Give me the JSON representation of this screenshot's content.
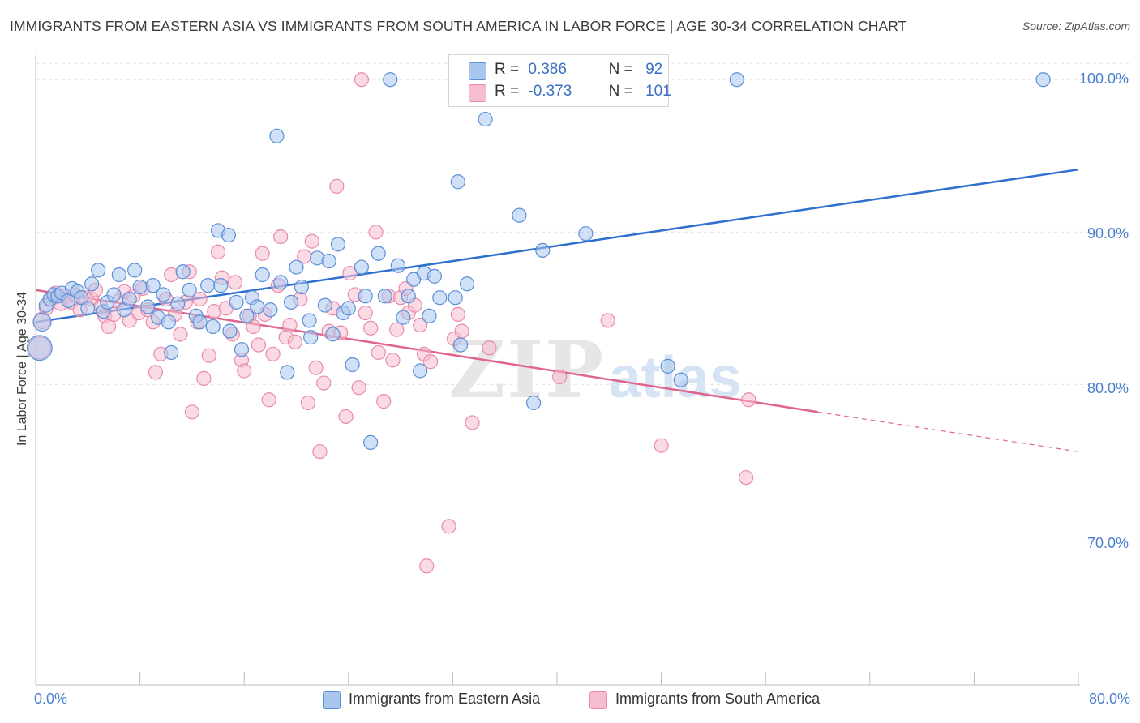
{
  "header": {
    "title": "IMMIGRANTS FROM EASTERN ASIA VS IMMIGRANTS FROM SOUTH AMERICA IN LABOR FORCE | AGE 30-34 CORRELATION CHART",
    "source": "Source: ZipAtlas.com"
  },
  "watermark": {
    "zip": "ZIP",
    "atlas": "atlas"
  },
  "legend": {
    "series1": {
      "r_label": "R =",
      "r_value": "0.386",
      "n_label": "N =",
      "n_value": "92"
    },
    "series2": {
      "r_label": "R =",
      "r_value": "-0.373",
      "n_label": "N =",
      "n_value": "101"
    }
  },
  "colors": {
    "blue_fill": "#a9c6ef",
    "blue_stroke": "#5b8fd6",
    "blue_line": "#2f6fcf",
    "pink_fill": "#f6bdd0",
    "pink_stroke": "#e98aaa",
    "pink_line": "#e0648e",
    "grid": "#e4e4e4",
    "axis_text": "#4a7fcf"
  },
  "chart_data": {
    "type": "scatter",
    "title": "IMMIGRANTS FROM EASTERN ASIA VS IMMIGRANTS FROM SOUTH AMERICA IN LABOR FORCE | AGE 30-34 CORRELATION CHART",
    "xlabel": "",
    "ylabel": "In Labor Force | Age 30-34",
    "xlim": [
      0,
      80
    ],
    "ylim": [
      60.3,
      101.5
    ],
    "x_tick_labels": [
      "0.0%",
      "80.0%"
    ],
    "y_ticks": [
      70,
      80,
      90,
      100
    ],
    "y_tick_labels": [
      "70.0%",
      "80.0%",
      "90.0%",
      "100.0%"
    ],
    "grid": true,
    "legend_position": "bottom",
    "series": [
      {
        "name": "Immigrants from Eastern Asia",
        "color": "#a9c6ef",
        "trend": {
          "x": [
            0,
            80
          ],
          "y": [
            84.1,
            94.1
          ],
          "style": "solid"
        },
        "points": [
          [
            0.3,
            82.4,
            1.8
          ],
          [
            0.5,
            84.1,
            1.3
          ],
          [
            0.8,
            85.2,
            1
          ],
          [
            1.1,
            85.6,
            1
          ],
          [
            1.4,
            85.9,
            1
          ],
          [
            1.7,
            85.8,
            1
          ],
          [
            2.0,
            86.0,
            1
          ],
          [
            2.5,
            85.5,
            1
          ],
          [
            2.8,
            86.3,
            1
          ],
          [
            3.2,
            86.1,
            1
          ],
          [
            3.5,
            85.7,
            1
          ],
          [
            4.0,
            85.0,
            1
          ],
          [
            4.3,
            86.6,
            1
          ],
          [
            4.8,
            87.5,
            1
          ],
          [
            5.2,
            84.8,
            1
          ],
          [
            5.5,
            85.4,
            1
          ],
          [
            6.0,
            85.9,
            1
          ],
          [
            6.4,
            87.2,
            1
          ],
          [
            6.8,
            84.9,
            1
          ],
          [
            7.2,
            85.6,
            1
          ],
          [
            7.6,
            87.5,
            1
          ],
          [
            8.0,
            86.4,
            1
          ],
          [
            8.6,
            85.1,
            1
          ],
          [
            9.0,
            86.5,
            1
          ],
          [
            9.4,
            84.4,
            1
          ],
          [
            9.8,
            85.9,
            1
          ],
          [
            10.2,
            84.1,
            1
          ],
          [
            10.4,
            82.1,
            1
          ],
          [
            10.9,
            85.3,
            1
          ],
          [
            11.3,
            87.4,
            1
          ],
          [
            11.8,
            86.2,
            1
          ],
          [
            12.3,
            84.5,
            1
          ],
          [
            12.6,
            84.1,
            1
          ],
          [
            13.2,
            86.5,
            1
          ],
          [
            13.6,
            83.8,
            1
          ],
          [
            14.2,
            86.5,
            1
          ],
          [
            14.0,
            90.1,
            1
          ],
          [
            14.8,
            89.8,
            1
          ],
          [
            14.9,
            83.5,
            1
          ],
          [
            15.4,
            85.4,
            1
          ],
          [
            15.8,
            82.3,
            1
          ],
          [
            16.2,
            84.5,
            1
          ],
          [
            16.6,
            85.7,
            1
          ],
          [
            17.0,
            85.1,
            1
          ],
          [
            17.4,
            87.2,
            1
          ],
          [
            18.0,
            84.9,
            1
          ],
          [
            18.5,
            96.3,
            1
          ],
          [
            18.8,
            86.7,
            1
          ],
          [
            19.3,
            80.8,
            1
          ],
          [
            19.6,
            85.4,
            1
          ],
          [
            20.0,
            87.7,
            1
          ],
          [
            20.4,
            86.4,
            1
          ],
          [
            21.0,
            84.2,
            1
          ],
          [
            21.1,
            83.1,
            1
          ],
          [
            21.6,
            88.3,
            1
          ],
          [
            22.2,
            85.2,
            1
          ],
          [
            22.5,
            88.1,
            1
          ],
          [
            22.8,
            83.3,
            1
          ],
          [
            23.2,
            89.2,
            1
          ],
          [
            23.6,
            84.7,
            1
          ],
          [
            24.0,
            85.0,
            1
          ],
          [
            24.3,
            81.3,
            1
          ],
          [
            25.0,
            87.7,
            1
          ],
          [
            25.3,
            85.8,
            1
          ],
          [
            25.7,
            76.2,
            1
          ],
          [
            26.3,
            88.6,
            1
          ],
          [
            26.8,
            85.8,
            1
          ],
          [
            27.2,
            100.0,
            1
          ],
          [
            27.8,
            87.8,
            1
          ],
          [
            28.2,
            84.4,
            1
          ],
          [
            28.6,
            85.8,
            1
          ],
          [
            29.0,
            86.9,
            1
          ],
          [
            29.5,
            80.9,
            1
          ],
          [
            29.8,
            87.3,
            1
          ],
          [
            30.2,
            84.5,
            1
          ],
          [
            30.6,
            87.1,
            1
          ],
          [
            31.0,
            85.7,
            1
          ],
          [
            32.2,
            85.7,
            1
          ],
          [
            32.4,
            93.3,
            1
          ],
          [
            32.6,
            82.6,
            1
          ],
          [
            33.1,
            86.6,
            1
          ],
          [
            34.5,
            97.4,
            1
          ],
          [
            37.1,
            91.1,
            1
          ],
          [
            38.2,
            78.8,
            1
          ],
          [
            38.5,
            100.0,
            1
          ],
          [
            38.9,
            88.8,
            1
          ],
          [
            42.2,
            89.9,
            1
          ],
          [
            48.5,
            81.2,
            1
          ],
          [
            49.5,
            80.3,
            1
          ],
          [
            53.8,
            100.0,
            1
          ],
          [
            77.3,
            100.0,
            1
          ]
        ]
      },
      {
        "name": "Immigrants from South America",
        "color": "#f6bdd0",
        "trend": {
          "x": [
            0,
            60
          ],
          "y": [
            86.2,
            78.2
          ],
          "style": "solid",
          "extension_x": [
            60,
            80
          ],
          "extension_y": [
            78.2,
            75.6
          ]
        },
        "points": [
          [
            0.3,
            82.4,
            1.6
          ],
          [
            0.5,
            84.2,
            1.2
          ],
          [
            0.8,
            85.0,
            1
          ],
          [
            1.2,
            85.6,
            1
          ],
          [
            1.5,
            86.0,
            1
          ],
          [
            1.9,
            85.3,
            1
          ],
          [
            2.3,
            85.8,
            1
          ],
          [
            2.7,
            85.4,
            1
          ],
          [
            3.0,
            85.9,
            1
          ],
          [
            3.4,
            84.9,
            1
          ],
          [
            3.8,
            85.7,
            1
          ],
          [
            4.3,
            85.6,
            1
          ],
          [
            4.6,
            86.2,
            1
          ],
          [
            5.0,
            85.1,
            1
          ],
          [
            5.3,
            84.5,
            1
          ],
          [
            5.6,
            83.8,
            1
          ],
          [
            6.0,
            84.6,
            1
          ],
          [
            6.4,
            85.5,
            1
          ],
          [
            6.8,
            86.1,
            1
          ],
          [
            7.2,
            84.2,
            1
          ],
          [
            7.5,
            85.8,
            1
          ],
          [
            7.9,
            84.7,
            1
          ],
          [
            8.2,
            86.3,
            1
          ],
          [
            8.6,
            84.9,
            1
          ],
          [
            9.0,
            84.1,
            1
          ],
          [
            9.2,
            80.8,
            1
          ],
          [
            9.6,
            82.0,
            1
          ],
          [
            10.0,
            85.6,
            1
          ],
          [
            10.4,
            87.2,
            1
          ],
          [
            10.7,
            84.6,
            1
          ],
          [
            11.1,
            83.3,
            1
          ],
          [
            11.5,
            85.4,
            1
          ],
          [
            11.8,
            87.4,
            1
          ],
          [
            12.0,
            78.2,
            1
          ],
          [
            12.4,
            84.1,
            1
          ],
          [
            12.6,
            85.6,
            1
          ],
          [
            12.9,
            80.4,
            1
          ],
          [
            13.3,
            81.9,
            1
          ],
          [
            13.7,
            84.8,
            1
          ],
          [
            14.0,
            88.7,
            1
          ],
          [
            14.3,
            87.0,
            1
          ],
          [
            14.6,
            85.0,
            1
          ],
          [
            15.1,
            83.3,
            1
          ],
          [
            15.3,
            86.7,
            1
          ],
          [
            15.8,
            81.6,
            1
          ],
          [
            16.0,
            80.9,
            1
          ],
          [
            16.4,
            84.5,
            1
          ],
          [
            16.7,
            83.8,
            1
          ],
          [
            17.1,
            82.6,
            1
          ],
          [
            17.4,
            88.6,
            1
          ],
          [
            17.6,
            84.6,
            1
          ],
          [
            17.9,
            79.0,
            1
          ],
          [
            18.2,
            82.0,
            1
          ],
          [
            18.6,
            86.5,
            1
          ],
          [
            18.8,
            89.7,
            1
          ],
          [
            19.2,
            83.1,
            1
          ],
          [
            19.5,
            83.9,
            1
          ],
          [
            19.9,
            82.8,
            1
          ],
          [
            20.3,
            85.6,
            1
          ],
          [
            20.6,
            88.4,
            1
          ],
          [
            20.9,
            78.8,
            1
          ],
          [
            21.2,
            89.4,
            1
          ],
          [
            21.5,
            81.1,
            1
          ],
          [
            21.8,
            75.6,
            1
          ],
          [
            22.1,
            80.1,
            1
          ],
          [
            22.5,
            83.5,
            1
          ],
          [
            22.8,
            85.0,
            1
          ],
          [
            23.1,
            93.0,
            1
          ],
          [
            23.4,
            83.4,
            1
          ],
          [
            23.8,
            77.9,
            1
          ],
          [
            24.1,
            87.3,
            1
          ],
          [
            24.5,
            85.9,
            1
          ],
          [
            24.8,
            79.8,
            1
          ],
          [
            25.0,
            100.0,
            1
          ],
          [
            25.3,
            84.7,
            1
          ],
          [
            25.7,
            83.7,
            1
          ],
          [
            26.1,
            90.0,
            1
          ],
          [
            26.3,
            82.1,
            1
          ],
          [
            26.7,
            78.9,
            1
          ],
          [
            27.1,
            85.8,
            1
          ],
          [
            27.4,
            81.6,
            1
          ],
          [
            27.7,
            83.6,
            1
          ],
          [
            28.0,
            85.7,
            1
          ],
          [
            28.4,
            86.3,
            1
          ],
          [
            28.6,
            84.7,
            1
          ],
          [
            29.1,
            85.2,
            1
          ],
          [
            29.5,
            83.9,
            1
          ],
          [
            29.8,
            82.0,
            1
          ],
          [
            30.3,
            81.5,
            1
          ],
          [
            30.0,
            68.1,
            1
          ],
          [
            31.7,
            70.7,
            1
          ],
          [
            32.1,
            83.0,
            1
          ],
          [
            32.4,
            84.6,
            1
          ],
          [
            32.7,
            83.5,
            1
          ],
          [
            33.5,
            77.5,
            1
          ],
          [
            34.8,
            82.4,
            1
          ],
          [
            40.2,
            80.5,
            1
          ],
          [
            43.9,
            84.2,
            1
          ],
          [
            48.0,
            76.0,
            1
          ],
          [
            54.7,
            79.0,
            1
          ],
          [
            54.5,
            73.9,
            1
          ]
        ]
      }
    ]
  },
  "bottom_legend": {
    "item1": "Immigrants from Eastern Asia",
    "item2": "Immigrants from South America"
  }
}
